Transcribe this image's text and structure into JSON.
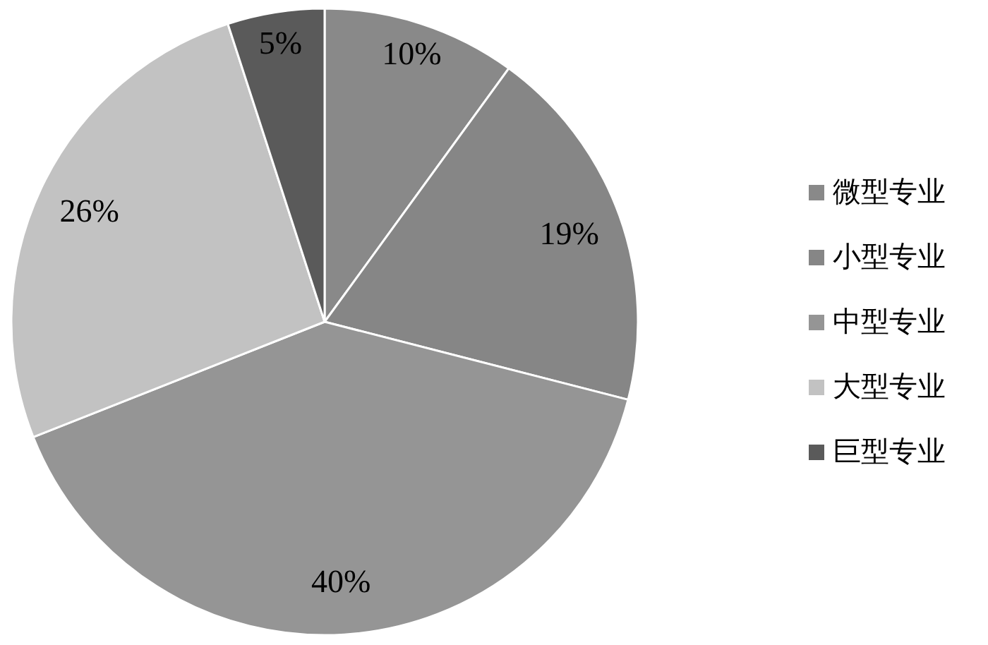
{
  "chart_data": {
    "type": "pie",
    "categories": [
      "微型专业",
      "小型专业",
      "中型专业",
      "大型专业",
      "巨型专业"
    ],
    "values": [
      10,
      19,
      40,
      26,
      5
    ],
    "colors": [
      "#898989",
      "#868686",
      "#959595",
      "#c2c2c2",
      "#5a5a5a"
    ],
    "value_labels": [
      "10%",
      "19%",
      "40%",
      "26%",
      "5%"
    ],
    "legend": "right"
  }
}
